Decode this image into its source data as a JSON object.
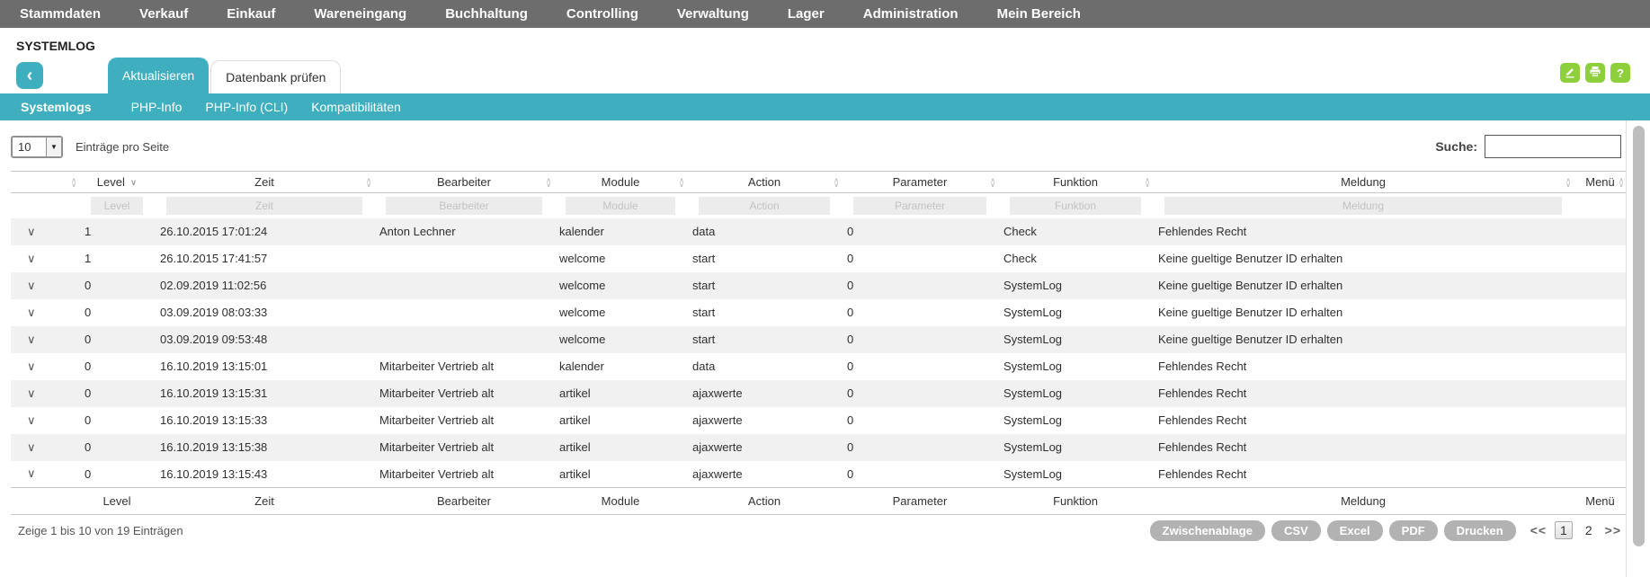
{
  "nav": {
    "items": [
      "Stammdaten",
      "Verkauf",
      "Einkauf",
      "Wareneingang",
      "Buchhaltung",
      "Controlling",
      "Verwaltung",
      "Lager",
      "Administration",
      "Mein Bereich"
    ]
  },
  "page": {
    "title": "SYSTEMLOG"
  },
  "tabs": [
    {
      "label": "Aktualisieren",
      "active": true
    },
    {
      "label": "Datenbank prüfen",
      "active": false
    }
  ],
  "action_icons": [
    "edit-icon",
    "print-icon",
    "help-icon"
  ],
  "subnav": {
    "items": [
      {
        "label": "Systemlogs",
        "active": true
      },
      {
        "label": "PHP-Info",
        "active": false
      },
      {
        "label": "PHP-Info (CLI)",
        "active": false
      },
      {
        "label": "Kompatibilitäten",
        "active": false
      }
    ]
  },
  "controls": {
    "page_size": "10",
    "page_size_label": "Einträge pro Seite",
    "search_label": "Suche:",
    "search_value": ""
  },
  "table": {
    "columns": [
      "Level",
      "Zeit",
      "Bearbeiter",
      "Module",
      "Action",
      "Parameter",
      "Funktion",
      "Meldung",
      "Menü"
    ],
    "sorted_column": "Level",
    "filters": [
      "Level",
      "Zeit",
      "Bearbeiter",
      "Module",
      "Action",
      "Parameter",
      "Funktion",
      "Meldung"
    ],
    "rows": [
      [
        "1",
        "26.10.2015 17:01:24",
        "Anton Lechner",
        "kalender",
        "data",
        "0",
        "Check",
        "Fehlendes Recht",
        ""
      ],
      [
        "1",
        "26.10.2015 17:41:57",
        "",
        "welcome",
        "start",
        "0",
        "Check",
        "Keine gueltige Benutzer ID erhalten",
        ""
      ],
      [
        "0",
        "02.09.2019 11:02:56",
        "",
        "welcome",
        "start",
        "0",
        "SystemLog",
        "Keine gueltige Benutzer ID erhalten",
        ""
      ],
      [
        "0",
        "03.09.2019 08:03:33",
        "",
        "welcome",
        "start",
        "0",
        "SystemLog",
        "Keine gueltige Benutzer ID erhalten",
        ""
      ],
      [
        "0",
        "03.09.2019 09:53:48",
        "",
        "welcome",
        "start",
        "0",
        "SystemLog",
        "Keine gueltige Benutzer ID erhalten",
        ""
      ],
      [
        "0",
        "16.10.2019 13:15:01",
        "Mitarbeiter Vertrieb alt",
        "kalender",
        "data",
        "0",
        "SystemLog",
        "Fehlendes Recht",
        ""
      ],
      [
        "0",
        "16.10.2019 13:15:31",
        "Mitarbeiter Vertrieb alt",
        "artikel",
        "ajaxwerte",
        "0",
        "SystemLog",
        "Fehlendes Recht",
        ""
      ],
      [
        "0",
        "16.10.2019 13:15:33",
        "Mitarbeiter Vertrieb alt",
        "artikel",
        "ajaxwerte",
        "0",
        "SystemLog",
        "Fehlendes Recht",
        ""
      ],
      [
        "0",
        "16.10.2019 13:15:38",
        "Mitarbeiter Vertrieb alt",
        "artikel",
        "ajaxwerte",
        "0",
        "SystemLog",
        "Fehlendes Recht",
        ""
      ],
      [
        "0",
        "16.10.2019 13:15:43",
        "Mitarbeiter Vertrieb alt",
        "artikel",
        "ajaxwerte",
        "0",
        "SystemLog",
        "Fehlendes Recht",
        ""
      ]
    ]
  },
  "footer": {
    "info": "Zeige 1 bis 10 von 19 Einträgen",
    "buttons": [
      "Zwischenablage",
      "CSV",
      "Excel",
      "PDF",
      "Drucken"
    ],
    "pagination": {
      "prev": "<<",
      "pages": [
        "1",
        "2"
      ],
      "current": "1",
      "next": ">>"
    }
  },
  "colors": {
    "topbar_gray": "#6d6d6d",
    "accent_teal": "#3fafc0",
    "accent_green": "#8ed03c",
    "row_stripe": "#f1f1f1",
    "button_gray": "#b2b2b2"
  }
}
